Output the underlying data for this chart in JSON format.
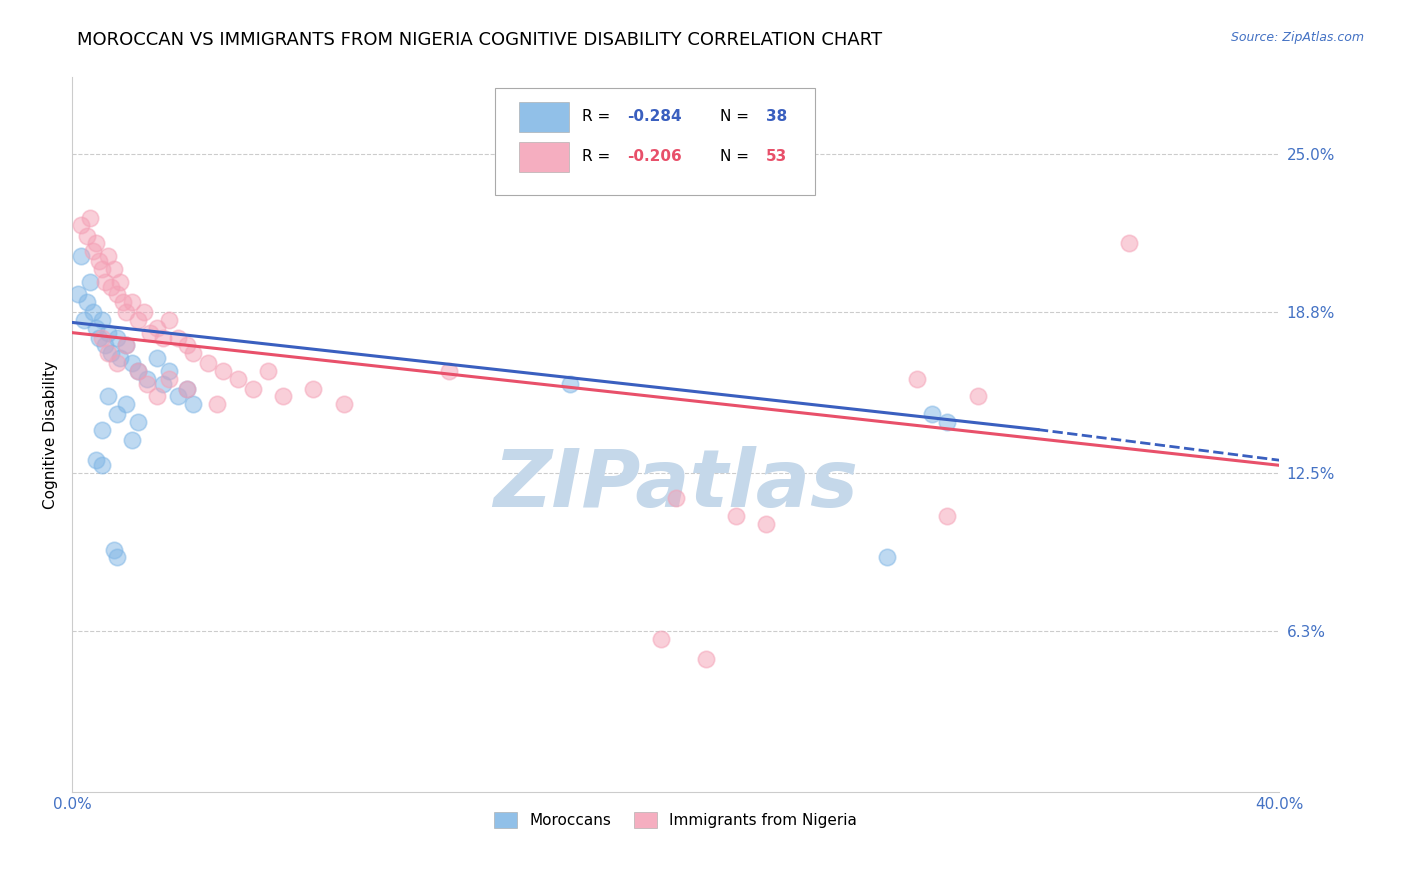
{
  "title": "MOROCCAN VS IMMIGRANTS FROM NIGERIA COGNITIVE DISABILITY CORRELATION CHART",
  "source": "Source: ZipAtlas.com",
  "ylabel": "Cognitive Disability",
  "ytick_labels": [
    "25.0%",
    "18.8%",
    "12.5%",
    "6.3%"
  ],
  "ytick_values": [
    0.25,
    0.188,
    0.125,
    0.063
  ],
  "xlim": [
    0.0,
    0.4
  ],
  "ylim": [
    0.0,
    0.28
  ],
  "blue_scatter": [
    [
      0.002,
      0.195
    ],
    [
      0.003,
      0.21
    ],
    [
      0.004,
      0.185
    ],
    [
      0.005,
      0.192
    ],
    [
      0.006,
      0.2
    ],
    [
      0.007,
      0.188
    ],
    [
      0.008,
      0.182
    ],
    [
      0.009,
      0.178
    ],
    [
      0.01,
      0.185
    ],
    [
      0.011,
      0.175
    ],
    [
      0.012,
      0.18
    ],
    [
      0.013,
      0.172
    ],
    [
      0.015,
      0.178
    ],
    [
      0.016,
      0.17
    ],
    [
      0.018,
      0.175
    ],
    [
      0.02,
      0.168
    ],
    [
      0.022,
      0.165
    ],
    [
      0.025,
      0.162
    ],
    [
      0.028,
      0.17
    ],
    [
      0.03,
      0.16
    ],
    [
      0.032,
      0.165
    ],
    [
      0.035,
      0.155
    ],
    [
      0.038,
      0.158
    ],
    [
      0.04,
      0.152
    ],
    [
      0.012,
      0.155
    ],
    [
      0.015,
      0.148
    ],
    [
      0.018,
      0.152
    ],
    [
      0.01,
      0.142
    ],
    [
      0.02,
      0.138
    ],
    [
      0.022,
      0.145
    ],
    [
      0.008,
      0.13
    ],
    [
      0.01,
      0.128
    ],
    [
      0.285,
      0.148
    ],
    [
      0.29,
      0.145
    ],
    [
      0.165,
      0.16
    ],
    [
      0.27,
      0.092
    ],
    [
      0.014,
      0.095
    ],
    [
      0.015,
      0.092
    ]
  ],
  "pink_scatter": [
    [
      0.003,
      0.222
    ],
    [
      0.005,
      0.218
    ],
    [
      0.006,
      0.225
    ],
    [
      0.007,
      0.212
    ],
    [
      0.008,
      0.215
    ],
    [
      0.009,
      0.208
    ],
    [
      0.01,
      0.205
    ],
    [
      0.011,
      0.2
    ],
    [
      0.012,
      0.21
    ],
    [
      0.013,
      0.198
    ],
    [
      0.014,
      0.205
    ],
    [
      0.015,
      0.195
    ],
    [
      0.016,
      0.2
    ],
    [
      0.017,
      0.192
    ],
    [
      0.018,
      0.188
    ],
    [
      0.02,
      0.192
    ],
    [
      0.022,
      0.185
    ],
    [
      0.024,
      0.188
    ],
    [
      0.026,
      0.18
    ],
    [
      0.028,
      0.182
    ],
    [
      0.03,
      0.178
    ],
    [
      0.032,
      0.185
    ],
    [
      0.035,
      0.178
    ],
    [
      0.038,
      0.175
    ],
    [
      0.04,
      0.172
    ],
    [
      0.045,
      0.168
    ],
    [
      0.05,
      0.165
    ],
    [
      0.055,
      0.162
    ],
    [
      0.06,
      0.158
    ],
    [
      0.065,
      0.165
    ],
    [
      0.07,
      0.155
    ],
    [
      0.08,
      0.158
    ],
    [
      0.09,
      0.152
    ],
    [
      0.01,
      0.178
    ],
    [
      0.012,
      0.172
    ],
    [
      0.015,
      0.168
    ],
    [
      0.018,
      0.175
    ],
    [
      0.022,
      0.165
    ],
    [
      0.025,
      0.16
    ],
    [
      0.028,
      0.155
    ],
    [
      0.032,
      0.162
    ],
    [
      0.038,
      0.158
    ],
    [
      0.048,
      0.152
    ],
    [
      0.125,
      0.165
    ],
    [
      0.35,
      0.215
    ],
    [
      0.2,
      0.115
    ],
    [
      0.22,
      0.108
    ],
    [
      0.28,
      0.162
    ],
    [
      0.3,
      0.155
    ],
    [
      0.29,
      0.108
    ],
    [
      0.23,
      0.105
    ],
    [
      0.195,
      0.06
    ],
    [
      0.21,
      0.052
    ]
  ],
  "blue_line": {
    "x0": 0.0,
    "y0": 0.184,
    "x1": 0.32,
    "y1": 0.142
  },
  "blue_dashed_line": {
    "x0": 0.32,
    "y0": 0.142,
    "x1": 0.4,
    "y1": 0.13
  },
  "pink_line": {
    "x0": 0.0,
    "y0": 0.18,
    "x1": 0.4,
    "y1": 0.128
  },
  "scatter_alpha": 0.5,
  "scatter_size": 140,
  "blue_color": "#7EB5E5",
  "pink_color": "#F4A0B5",
  "blue_line_color": "#3A5FBF",
  "pink_line_color": "#E8506A",
  "grid_color": "#CCCCCC",
  "watermark": "ZIPatlas",
  "watermark_color": "#C5D8EA",
  "background_color": "#FFFFFF",
  "title_fontsize": 13,
  "axis_label_fontsize": 11,
  "tick_fontsize": 11,
  "legend_fontsize": 11,
  "right_tick_color": "#4472C4",
  "bottom_tick_color": "#4472C4"
}
